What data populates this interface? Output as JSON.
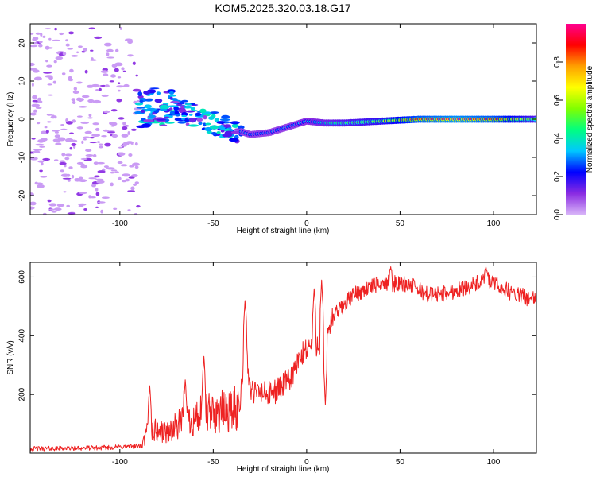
{
  "title": "KOM5.2025.320.03.18.G17",
  "colors": {
    "snr_line": "#ee2222",
    "axis": "#000000",
    "colorbar_stops": [
      "#d8b4f8",
      "#8a2be2",
      "#0000ff",
      "#00c8ff",
      "#00ff80",
      "#80ff00",
      "#ffff00",
      "#ffa000",
      "#ff0000",
      "#ff0090"
    ]
  },
  "chart_data": [
    {
      "type": "heatmap",
      "name": "spectrogram",
      "xlabel": "Height of straight line (km)",
      "ylabel": "Frequency (Hz)",
      "xlim": [
        -148,
        123
      ],
      "ylim": [
        -25,
        25
      ],
      "x_ticks": [
        "-100",
        "-50",
        "0",
        "50",
        "100"
      ],
      "y_ticks": [
        "-20",
        "-10",
        "0",
        "10",
        "20"
      ],
      "track": [
        {
          "x": -90,
          "f": 2.0
        },
        {
          "x": -80,
          "f": 3.5
        },
        {
          "x": -70,
          "f": 2.5
        },
        {
          "x": -60,
          "f": 1.0
        },
        {
          "x": -50,
          "f": -1.0
        },
        {
          "x": -40,
          "f": -2.5
        },
        {
          "x": -30,
          "f": -4.0
        },
        {
          "x": -20,
          "f": -3.5
        },
        {
          "x": -10,
          "f": -2.0
        },
        {
          "x": 0,
          "f": -0.5
        },
        {
          "x": 10,
          "f": -1.0
        },
        {
          "x": 20,
          "f": -1.0
        },
        {
          "x": 40,
          "f": -0.5
        },
        {
          "x": 60,
          "f": 0.0
        },
        {
          "x": 80,
          "f": 0.0
        },
        {
          "x": 100,
          "f": 0.0
        },
        {
          "x": 123,
          "f": 0.0
        }
      ],
      "amplitude": [
        {
          "x": -90,
          "a": 0.3
        },
        {
          "x": -60,
          "a": 0.35
        },
        {
          "x": -30,
          "a": 0.3
        },
        {
          "x": -10,
          "a": 0.3
        },
        {
          "x": 0,
          "a": 0.35
        },
        {
          "x": 20,
          "a": 0.5
        },
        {
          "x": 40,
          "a": 0.6
        },
        {
          "x": 60,
          "a": 0.9
        },
        {
          "x": 80,
          "a": 1.0
        },
        {
          "x": 100,
          "a": 0.9
        },
        {
          "x": 123,
          "a": 0.5
        }
      ]
    },
    {
      "type": "colorbar",
      "name": "normalized-amplitude-colorbar",
      "label": "Normalized spectral amplitude",
      "range": [
        0,
        1
      ],
      "ticks": [
        "0.0",
        "0.2",
        "0.4",
        "0.6",
        "0.8"
      ]
    },
    {
      "type": "line",
      "name": "snr",
      "xlabel": "Height of straight line (km)",
      "ylabel": "SNR (v/v)",
      "xlim": [
        -148,
        123
      ],
      "ylim": [
        0,
        650
      ],
      "x_ticks": [
        "-100",
        "-50",
        "0",
        "50",
        "100"
      ],
      "y_ticks": [
        "200",
        "400",
        "600"
      ],
      "envelope": [
        {
          "x": -148,
          "y": 15
        },
        {
          "x": -110,
          "y": 18
        },
        {
          "x": -88,
          "y": 25
        },
        {
          "x": -85,
          "y": 80
        },
        {
          "x": -75,
          "y": 70
        },
        {
          "x": -65,
          "y": 110
        },
        {
          "x": -55,
          "y": 130
        },
        {
          "x": -45,
          "y": 140
        },
        {
          "x": -36,
          "y": 150
        },
        {
          "x": -33,
          "y": 380
        },
        {
          "x": -30,
          "y": 210
        },
        {
          "x": -20,
          "y": 200
        },
        {
          "x": -10,
          "y": 240
        },
        {
          "x": -5,
          "y": 300
        },
        {
          "x": 0,
          "y": 360
        },
        {
          "x": 8,
          "y": 380
        },
        {
          "x": 15,
          "y": 470
        },
        {
          "x": 25,
          "y": 540
        },
        {
          "x": 40,
          "y": 580
        },
        {
          "x": 55,
          "y": 575
        },
        {
          "x": 65,
          "y": 540
        },
        {
          "x": 75,
          "y": 545
        },
        {
          "x": 90,
          "y": 575
        },
        {
          "x": 97,
          "y": 590
        },
        {
          "x": 110,
          "y": 545
        },
        {
          "x": 123,
          "y": 520
        }
      ],
      "spikes": [
        {
          "x": -84,
          "y": 230
        },
        {
          "x": -65,
          "y": 250
        },
        {
          "x": -55,
          "y": 330
        },
        {
          "x": -33,
          "y": 520
        },
        {
          "x": 4,
          "y": 560
        },
        {
          "x": 8,
          "y": 590
        },
        {
          "x": 10,
          "y": 165
        },
        {
          "x": 45,
          "y": 635
        },
        {
          "x": 96,
          "y": 635
        }
      ]
    }
  ]
}
